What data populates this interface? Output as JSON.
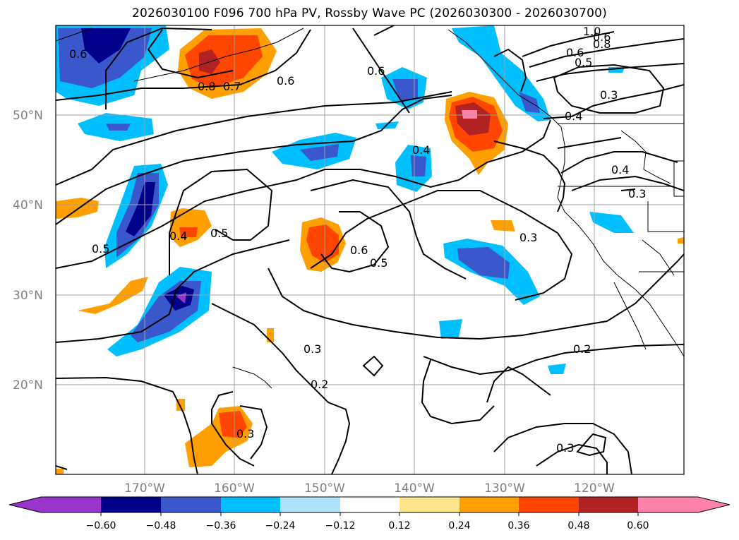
{
  "title": "2026030100 F096 700 hPa PV, Rossby Wave PC (2026030300 - 2026030700)",
  "map": {
    "lat_labels": [
      "50°N",
      "40°N",
      "30°N",
      "20°N"
    ],
    "lon_labels": [
      "170°W",
      "160°W",
      "150°W",
      "140°W",
      "130°W",
      "120°W"
    ],
    "contour_labels": [
      "1.0",
      "0.8",
      "0.6",
      "0.5",
      "0.3",
      "0.4",
      "0.6",
      "0.7",
      "0.8",
      "0.6",
      "0.6",
      "0.4",
      "0.4",
      "0.3",
      "0.5",
      "0.4",
      "0.5",
      "0.6",
      "0.5",
      "0.3",
      "0.3",
      "0.2",
      "0.3",
      "0.2",
      "0.3",
      "0.6"
    ]
  },
  "colorbar": {
    "ticks": [
      "−0.60",
      "−0.48",
      "−0.36",
      "−0.24",
      "−0.12",
      "0.12",
      "0.24",
      "0.36",
      "0.48",
      "0.60"
    ],
    "colors": [
      "#9933cc",
      "#00008b",
      "#3a57cc",
      "#00bfff",
      "#aee3fb",
      "#ffffff",
      "#fde68a",
      "#ffa000",
      "#ff4500",
      "#b22222",
      "#ff82aa"
    ]
  }
}
